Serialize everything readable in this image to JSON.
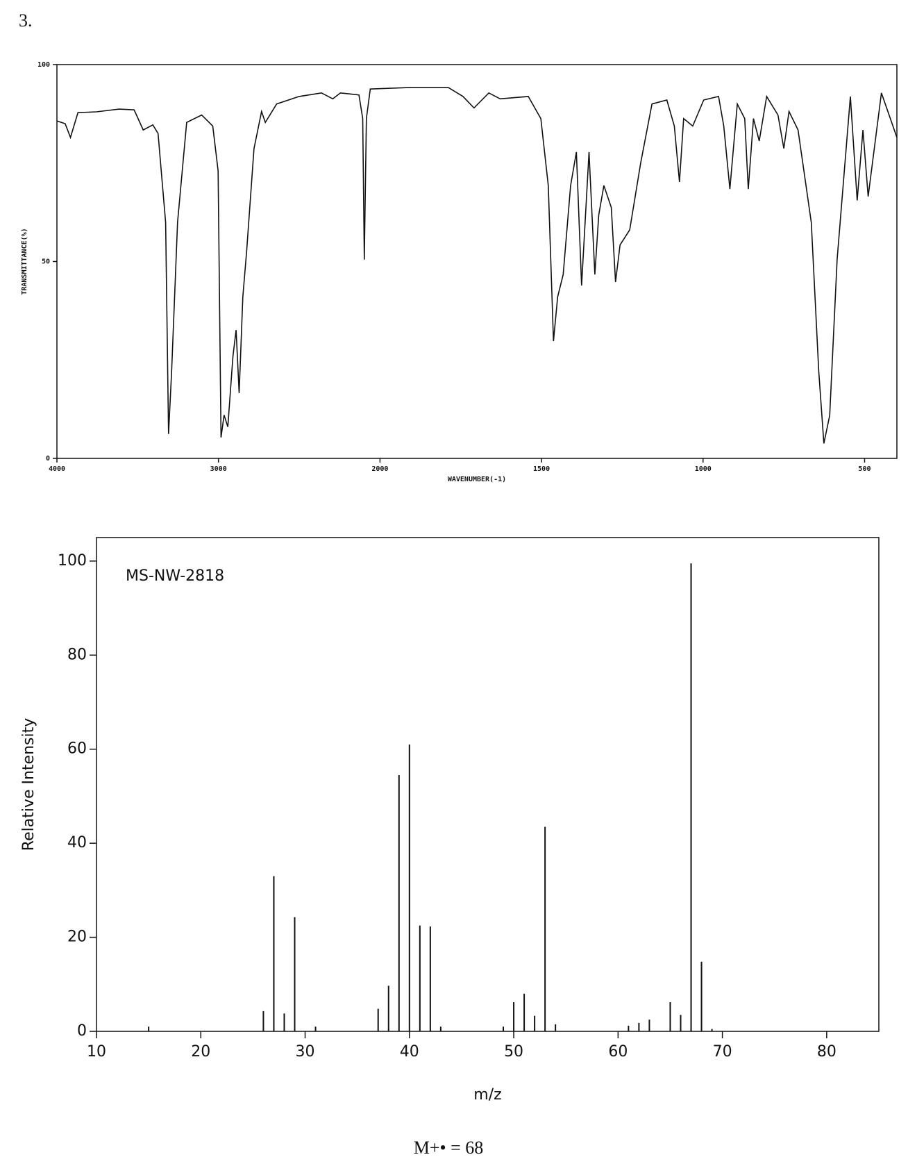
{
  "label": "3.",
  "chart_data": [
    {
      "type": "line",
      "x_label": "WAVENUMBER(-1)",
      "y_label": "TRANSMITTANCE(%)",
      "color": "#111111",
      "xlim": [
        4000,
        400
      ],
      "xticks": [
        4000,
        3000,
        2000,
        1500,
        1000,
        500
      ],
      "ylim": [
        0,
        100
      ],
      "yticks": [
        0,
        50,
        100
      ],
      "x_scale": "piecewise-by-ticks",
      "x": [
        4000,
        3949,
        3916,
        3870,
        3754,
        3615,
        3522,
        3466,
        3406,
        3374,
        3327,
        3309,
        3290,
        3253,
        3197,
        3104,
        3035,
        3002,
        2984,
        2965,
        2942,
        2910,
        2891,
        2872,
        2849,
        2826,
        2780,
        2733,
        2710,
        2640,
        2501,
        2362,
        2292,
        2245,
        2130,
        2107,
        2097,
        2084,
        2060,
        1904,
        1789,
        1743,
        1709,
        1663,
        1628,
        1541,
        1502,
        1479,
        1463,
        1450,
        1433,
        1410,
        1392,
        1376,
        1353,
        1335,
        1323,
        1307,
        1284,
        1271,
        1257,
        1227,
        1193,
        1158,
        1112,
        1089,
        1073,
        1060,
        1032,
        998,
        952,
        936,
        917,
        894,
        871,
        860,
        844,
        826,
        803,
        768,
        750,
        734,
        706,
        665,
        642,
        626,
        608,
        585,
        544,
        523,
        505,
        489,
        448,
        400
      ],
      "values": [
        85.7,
        85,
        81.5,
        87.8,
        88,
        88.7,
        88.5,
        83.4,
        84.7,
        82.5,
        59.9,
        6.2,
        22,
        60,
        85.3,
        87.2,
        84.4,
        73,
        5.3,
        11,
        8,
        26,
        32.6,
        16.6,
        41,
        52.4,
        78.7,
        88.1,
        85.3,
        90,
        91.9,
        92.8,
        91.3,
        92.8,
        92.3,
        86.3,
        50.5,
        86.3,
        93.8,
        94.2,
        94.2,
        91.9,
        89,
        92.8,
        91.3,
        91.9,
        86.3,
        69.3,
        29.8,
        41,
        46.7,
        69.3,
        77.8,
        43.9,
        77.8,
        46.7,
        61.8,
        69.3,
        63.7,
        44.8,
        54.2,
        58,
        75,
        90,
        91,
        84.4,
        70.2,
        86.3,
        84.4,
        91,
        91.9,
        84.4,
        68.4,
        90,
        86.3,
        68.4,
        86.3,
        80.6,
        91.9,
        87.2,
        78.7,
        88.1,
        83.4,
        59.9,
        22.2,
        3.8,
        10.9,
        50.5,
        91.9,
        65.5,
        83.4,
        66.5,
        92.8,
        81.5
      ]
    },
    {
      "type": "bar",
      "x_label": "m/z",
      "y_label": "Relative Intensity",
      "annotation": "MS-NW-2818",
      "color": "#111111",
      "xlim": [
        10,
        85
      ],
      "xticks": [
        10,
        20,
        30,
        40,
        50,
        60,
        70,
        80
      ],
      "ylim": [
        0,
        105
      ],
      "yticks": [
        0,
        20,
        40,
        60,
        80,
        100
      ],
      "x": [
        15,
        26,
        27,
        28,
        29,
        31,
        37,
        38,
        39,
        40,
        41,
        42,
        43,
        49,
        50,
        51,
        52,
        53,
        54,
        61,
        62,
        63,
        65,
        66,
        67,
        68,
        69
      ],
      "values": [
        1,
        4.3,
        33,
        3.8,
        24.3,
        1,
        4.8,
        9.7,
        54.5,
        61,
        22.5,
        22.3,
        1,
        1,
        6.2,
        8,
        3.3,
        43.5,
        1.5,
        1.2,
        1.8,
        2.5,
        6.2,
        3.5,
        99.5,
        14.8,
        0.5
      ]
    }
  ],
  "caption": "M+• = 68"
}
